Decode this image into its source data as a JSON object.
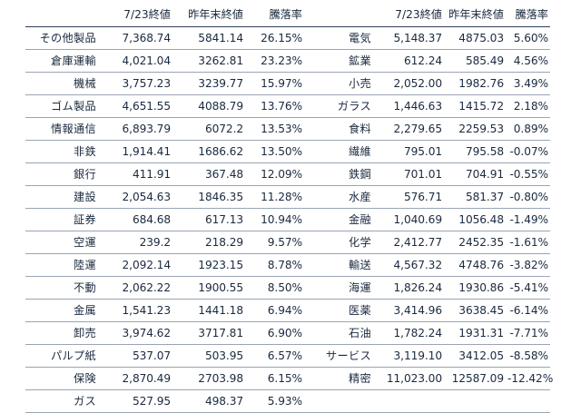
{
  "table": {
    "columns": {
      "current": "7/23終値",
      "previous": "昨年末終値",
      "rate": "騰落率"
    },
    "left": [
      {
        "name": "その他製品",
        "current": "7,368.74",
        "previous": "5841.14",
        "rate": "26.15%"
      },
      {
        "name": "倉庫運輸",
        "current": "4,021.04",
        "previous": "3262.81",
        "rate": "23.23%"
      },
      {
        "name": "機械",
        "current": "3,757.23",
        "previous": "3239.77",
        "rate": "15.97%"
      },
      {
        "name": "ゴム製品",
        "current": "4,651.55",
        "previous": "4088.79",
        "rate": "13.76%"
      },
      {
        "name": "情報通信",
        "current": "6,893.79",
        "previous": "6072.2",
        "rate": "13.53%"
      },
      {
        "name": "非鉄",
        "current": "1,914.41",
        "previous": "1686.62",
        "rate": "13.50%"
      },
      {
        "name": "銀行",
        "current": "411.91",
        "previous": "367.48",
        "rate": "12.09%"
      },
      {
        "name": "建設",
        "current": "2,054.63",
        "previous": "1846.35",
        "rate": "11.28%"
      },
      {
        "name": "証券",
        "current": "684.68",
        "previous": "617.13",
        "rate": "10.94%"
      },
      {
        "name": "空運",
        "current": "239.2",
        "previous": "218.29",
        "rate": "9.57%"
      },
      {
        "name": "陸運",
        "current": "2,092.14",
        "previous": "1923.15",
        "rate": "8.78%"
      },
      {
        "name": "不動",
        "current": "2,062.22",
        "previous": "1900.55",
        "rate": "8.50%"
      },
      {
        "name": "金属",
        "current": "1,541.23",
        "previous": "1441.18",
        "rate": "6.94%"
      },
      {
        "name": "卸売",
        "current": "3,974.62",
        "previous": "3717.81",
        "rate": "6.90%"
      },
      {
        "name": "パルプ紙",
        "current": "537.07",
        "previous": "503.95",
        "rate": "6.57%"
      },
      {
        "name": "保険",
        "current": "2,870.49",
        "previous": "2703.98",
        "rate": "6.15%"
      },
      {
        "name": "ガス",
        "current": "527.95",
        "previous": "498.37",
        "rate": "5.93%"
      }
    ],
    "right": [
      {
        "name": "電気",
        "current": "5,148.37",
        "previous": "4875.03",
        "rate": "5.60%"
      },
      {
        "name": "鉱業",
        "current": "612.24",
        "previous": "585.49",
        "rate": "4.56%"
      },
      {
        "name": "小売",
        "current": "2,052.00",
        "previous": "1982.76",
        "rate": "3.49%"
      },
      {
        "name": "ガラス",
        "current": "1,446.63",
        "previous": "1415.72",
        "rate": "2.18%"
      },
      {
        "name": "食料",
        "current": "2,279.65",
        "previous": "2259.53",
        "rate": "0.89%"
      },
      {
        "name": "繊維",
        "current": "795.01",
        "previous": "795.58",
        "rate": "-0.07%"
      },
      {
        "name": "鉄鋼",
        "current": "701.01",
        "previous": "704.91",
        "rate": "-0.55%"
      },
      {
        "name": "水産",
        "current": "576.71",
        "previous": "581.37",
        "rate": "-0.80%"
      },
      {
        "name": "金融",
        "current": "1,040.69",
        "previous": "1056.48",
        "rate": "-1.49%"
      },
      {
        "name": "化学",
        "current": "2,412.77",
        "previous": "2452.35",
        "rate": "-1.61%"
      },
      {
        "name": "輸送",
        "current": "4,567.32",
        "previous": "4748.76",
        "rate": "-3.82%"
      },
      {
        "name": "海運",
        "current": "1,826.24",
        "previous": "1930.86",
        "rate": "-5.41%"
      },
      {
        "name": "医薬",
        "current": "3,414.96",
        "previous": "3638.45",
        "rate": "-6.14%"
      },
      {
        "name": "石油",
        "current": "1,782.24",
        "previous": "1931.31",
        "rate": "-7.71%"
      },
      {
        "name": "サービス",
        "current": "3,119.10",
        "previous": "3412.05",
        "rate": "-8.58%"
      },
      {
        "name": "精密",
        "current": "11,023.00",
        "previous": "12587.09",
        "rate": "-12.42%"
      }
    ]
  }
}
